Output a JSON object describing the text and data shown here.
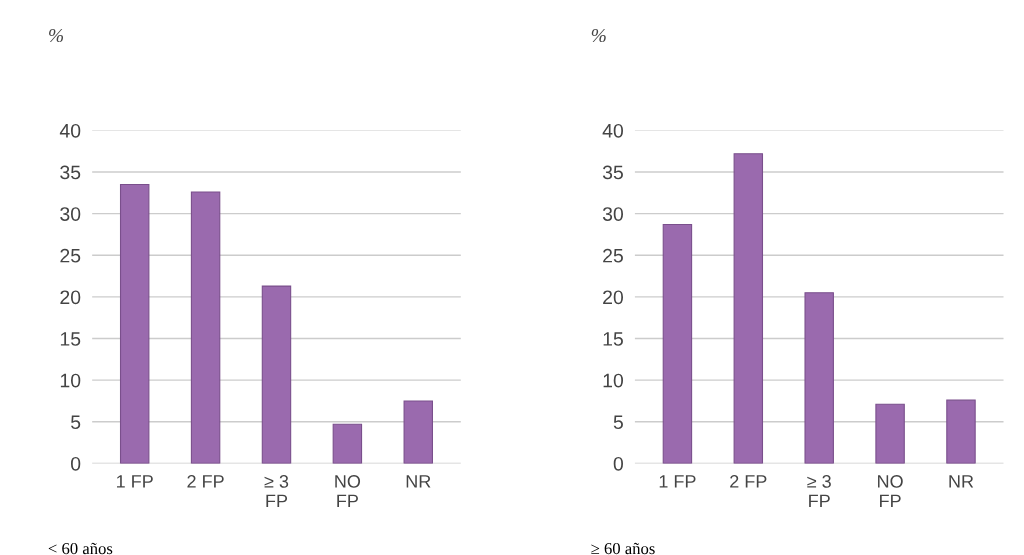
{
  "chart_data": [
    {
      "type": "bar",
      "ylabel": "%",
      "categories": [
        "1 FP",
        "2 FP",
        "≥ 3\nFP",
        "NO\nFP",
        "NR"
      ],
      "values": [
        33.5,
        32.6,
        21.3,
        4.7,
        7.5
      ],
      "color": "#9a6aae",
      "ylim": [
        0,
        40
      ],
      "yticks": [
        0,
        5,
        10,
        15,
        20,
        25,
        30,
        35,
        40
      ],
      "grid": "y",
      "annotations": [
        "< 60 años"
      ]
    },
    {
      "type": "bar",
      "ylabel": "%",
      "categories": [
        "1 FP",
        "2 FP",
        "≥ 3\nFP",
        "NO\nFP",
        "NR"
      ],
      "values": [
        28.7,
        37.2,
        20.5,
        7.1,
        7.6
      ],
      "color": "#9a6aae",
      "ylim": [
        0,
        40
      ],
      "yticks": [
        0,
        5,
        10,
        15,
        20,
        25,
        30,
        35,
        40
      ],
      "grid": "y",
      "annotations": [
        "≥ 60 años"
      ]
    }
  ]
}
